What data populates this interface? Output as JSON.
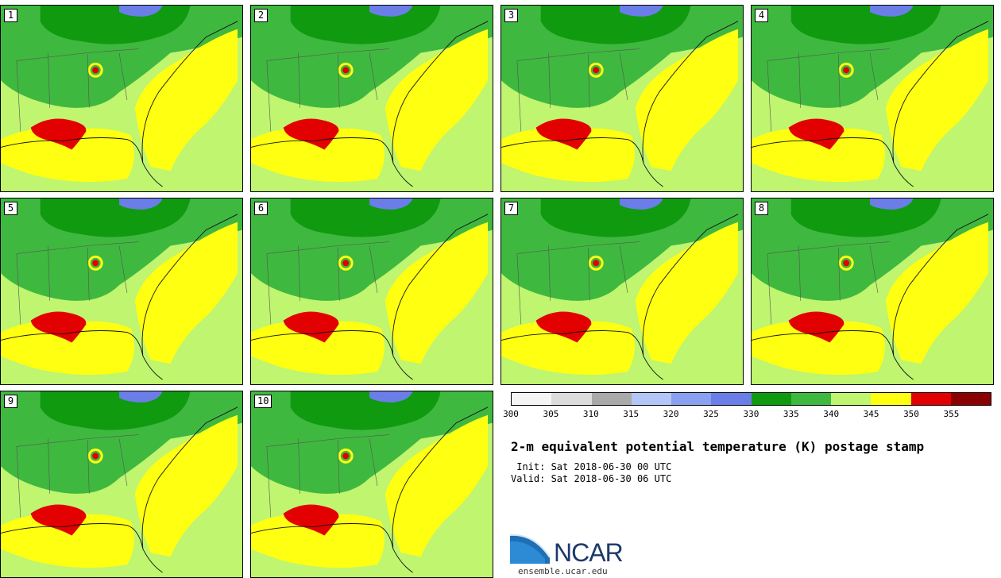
{
  "panels": [
    {
      "number": "1"
    },
    {
      "number": "2"
    },
    {
      "number": "3"
    },
    {
      "number": "4"
    },
    {
      "number": "5"
    },
    {
      "number": "6"
    },
    {
      "number": "7"
    },
    {
      "number": "8"
    },
    {
      "number": "9"
    },
    {
      "number": "10"
    }
  ],
  "colorbar": {
    "ticks": [
      "300",
      "305",
      "310",
      "315",
      "320",
      "325",
      "330",
      "335",
      "340",
      "345",
      "350",
      "355"
    ],
    "colors": [
      "#f5f5f5",
      "#dcdcdc",
      "#a9a9a9",
      "#b3c6f7",
      "#8aa0f0",
      "#6b7ee8",
      "#109a10",
      "#3fb83f",
      "#bff56f",
      "#ffff12",
      "#e30000",
      "#8b0000"
    ]
  },
  "title": "2-m equivalent potential temperature (K) postage stamp",
  "init": " Init: Sat 2018-06-30 00 UTC",
  "valid": "Valid: Sat 2018-06-30 06 UTC",
  "logo": {
    "text": "NCAR",
    "url": "ensemble.ucar.edu"
  }
}
